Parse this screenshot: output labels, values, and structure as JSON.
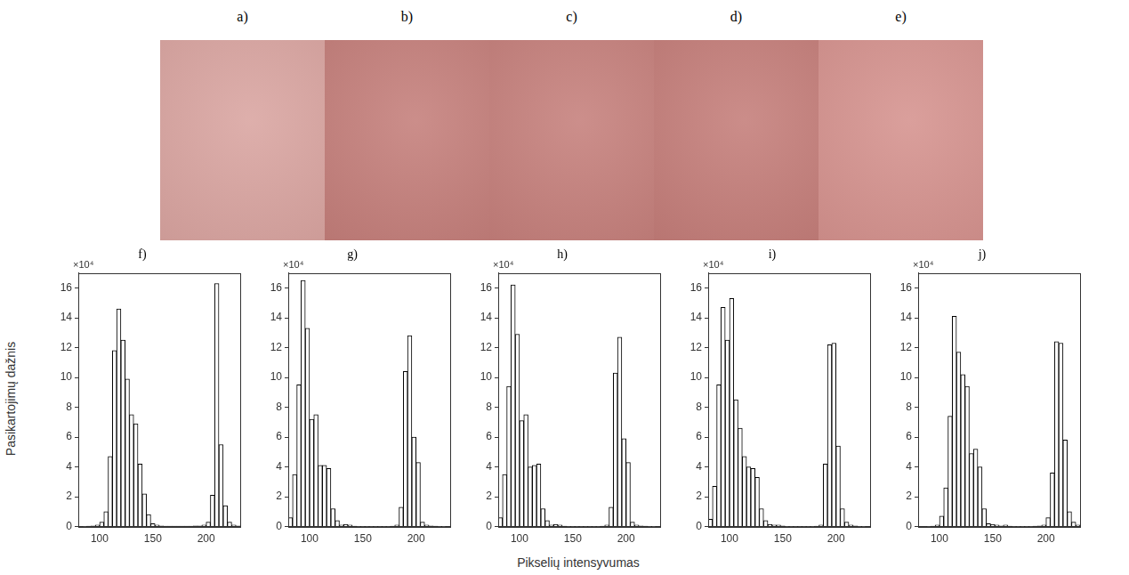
{
  "images": [
    {
      "label": "a)",
      "color": "#d9a4a0"
    },
    {
      "label": "b)",
      "color": "#c47e7a"
    },
    {
      "label": "c)",
      "color": "#c57f7b"
    },
    {
      "label": "d)",
      "color": "#c47d79"
    },
    {
      "label": "e)",
      "color": "#d5928e"
    }
  ],
  "axis_labels": {
    "x": "Pikselių intensyvumas",
    "y": "Pasikartojimų dažnis"
  },
  "chart_data": [
    {
      "type": "histogram",
      "title": "f)",
      "annotation": "×10⁴",
      "color": "#ffffff",
      "grid": false,
      "bins": [
        80,
        84,
        88,
        92,
        96,
        100,
        104,
        108,
        112,
        116,
        120,
        124,
        128,
        132,
        136,
        140,
        144,
        148,
        152,
        156,
        160,
        164,
        168,
        172,
        176,
        180,
        184,
        188,
        192,
        196,
        200,
        204,
        208,
        212,
        216,
        220,
        224,
        228,
        232
      ],
      "values": [
        0,
        0.02,
        0.03,
        0.05,
        0.1,
        0.3,
        1.0,
        4.7,
        11.8,
        14.6,
        12.5,
        9.9,
        7.5,
        6.9,
        4.2,
        2.2,
        0.8,
        0.2,
        0.1,
        0.05,
        0.03,
        0.03,
        0.03,
        0.03,
        0.03,
        0.03,
        0.03,
        0.04,
        0.05,
        0.1,
        0.3,
        2.1,
        16.3,
        5.5,
        1.4,
        0.3,
        0.1,
        0.05
      ],
      "xlim": [
        80,
        232
      ],
      "xticks": [
        100,
        150,
        200
      ],
      "ylim": [
        0,
        17
      ],
      "yticks": [
        0,
        2,
        4,
        6,
        8,
        10,
        12,
        14,
        16
      ]
    },
    {
      "type": "histogram",
      "title": "g)",
      "annotation": "×10⁴",
      "color": "#ffffff",
      "grid": false,
      "bins": [
        80,
        84,
        88,
        92,
        96,
        100,
        104,
        108,
        112,
        116,
        120,
        124,
        128,
        132,
        136,
        140,
        144,
        148,
        152,
        156,
        160,
        164,
        168,
        172,
        176,
        180,
        184,
        188,
        192,
        196,
        200,
        204,
        208,
        212,
        216,
        220,
        224,
        228,
        232
      ],
      "values": [
        0.6,
        3.5,
        9.5,
        16.5,
        13.3,
        7.2,
        7.5,
        4.1,
        4.1,
        3.9,
        1.2,
        0.4,
        0.1,
        0.15,
        0.1,
        0.03,
        0.02,
        0.02,
        0.02,
        0.02,
        0.02,
        0.02,
        0.02,
        0.02,
        0.03,
        0.1,
        1.3,
        10.4,
        12.8,
        6.0,
        4.3,
        0.3,
        0.1,
        0.05,
        0.03,
        0.02,
        0.01,
        0
      ],
      "xlim": [
        80,
        232
      ],
      "xticks": [
        100,
        150,
        200
      ],
      "ylim": [
        0,
        17
      ],
      "yticks": [
        0,
        2,
        4,
        6,
        8,
        10,
        12,
        14,
        16
      ]
    },
    {
      "type": "histogram",
      "title": "h)",
      "annotation": "×10⁴",
      "color": "#ffffff",
      "grid": false,
      "bins": [
        80,
        84,
        88,
        92,
        96,
        100,
        104,
        108,
        112,
        116,
        120,
        124,
        128,
        132,
        136,
        140,
        144,
        148,
        152,
        156,
        160,
        164,
        168,
        172,
        176,
        180,
        184,
        188,
        192,
        196,
        200,
        204,
        208,
        212,
        216,
        220,
        224,
        228,
        232
      ],
      "values": [
        0.6,
        3.5,
        9.4,
        16.2,
        12.9,
        7.1,
        7.5,
        4.0,
        4.1,
        4.2,
        1.2,
        0.4,
        0.1,
        0.15,
        0.1,
        0.03,
        0.02,
        0.02,
        0.02,
        0.02,
        0.02,
        0.02,
        0.02,
        0.02,
        0.03,
        0.1,
        1.3,
        10.3,
        12.7,
        5.9,
        4.3,
        0.3,
        0.1,
        0.05,
        0.03,
        0.02,
        0.01,
        0
      ],
      "xlim": [
        80,
        232
      ],
      "xticks": [
        100,
        150,
        200
      ],
      "ylim": [
        0,
        17
      ],
      "yticks": [
        0,
        2,
        4,
        6,
        8,
        10,
        12,
        14,
        16
      ]
    },
    {
      "type": "histogram",
      "title": "i)",
      "annotation": "×10⁴",
      "color": "#ffffff",
      "grid": false,
      "bins": [
        80,
        84,
        88,
        92,
        96,
        100,
        104,
        108,
        112,
        116,
        120,
        124,
        128,
        132,
        136,
        140,
        144,
        148,
        152,
        156,
        160,
        164,
        168,
        172,
        176,
        180,
        184,
        188,
        192,
        196,
        200,
        204,
        208,
        212,
        216,
        220,
        224,
        228,
        232
      ],
      "values": [
        0.5,
        2.7,
        9.5,
        14.7,
        12.5,
        15.3,
        8.5,
        6.6,
        4.7,
        4.0,
        3.9,
        3.3,
        1.2,
        0.4,
        0.15,
        0.1,
        0.1,
        0.05,
        0.02,
        0.02,
        0.02,
        0.02,
        0.02,
        0.02,
        0.02,
        0.03,
        0.1,
        4.2,
        12.2,
        12.3,
        5.4,
        1.2,
        0.3,
        0.1,
        0.05,
        0.02,
        0.01,
        0
      ],
      "xlim": [
        80,
        232
      ],
      "xticks": [
        100,
        150,
        200
      ],
      "ylim": [
        0,
        17
      ],
      "yticks": [
        0,
        2,
        4,
        6,
        8,
        10,
        12,
        14,
        16
      ]
    },
    {
      "type": "histogram",
      "title": "j)",
      "annotation": "×10⁴",
      "color": "#ffffff",
      "grid": false,
      "bins": [
        80,
        84,
        88,
        92,
        96,
        100,
        104,
        108,
        112,
        116,
        120,
        124,
        128,
        132,
        136,
        140,
        144,
        148,
        152,
        156,
        160,
        164,
        168,
        172,
        176,
        180,
        184,
        188,
        192,
        196,
        200,
        204,
        208,
        212,
        216,
        220,
        224,
        228,
        232
      ],
      "values": [
        0,
        0,
        0.02,
        0.03,
        0.1,
        0.7,
        2.6,
        7.4,
        14.1,
        11.7,
        10.2,
        9.4,
        4.9,
        5.2,
        4.0,
        1.2,
        0.2,
        0.15,
        0.1,
        0.05,
        0.1,
        0.03,
        0.02,
        0.02,
        0.02,
        0.02,
        0.02,
        0.03,
        0.05,
        0.1,
        0.6,
        3.6,
        12.4,
        12.3,
        5.8,
        1.0,
        0.3,
        0.1
      ],
      "xlim": [
        80,
        232
      ],
      "xticks": [
        100,
        150,
        200
      ],
      "ylim": [
        0,
        17
      ],
      "yticks": [
        0,
        2,
        4,
        6,
        8,
        10,
        12,
        14,
        16
      ]
    }
  ]
}
